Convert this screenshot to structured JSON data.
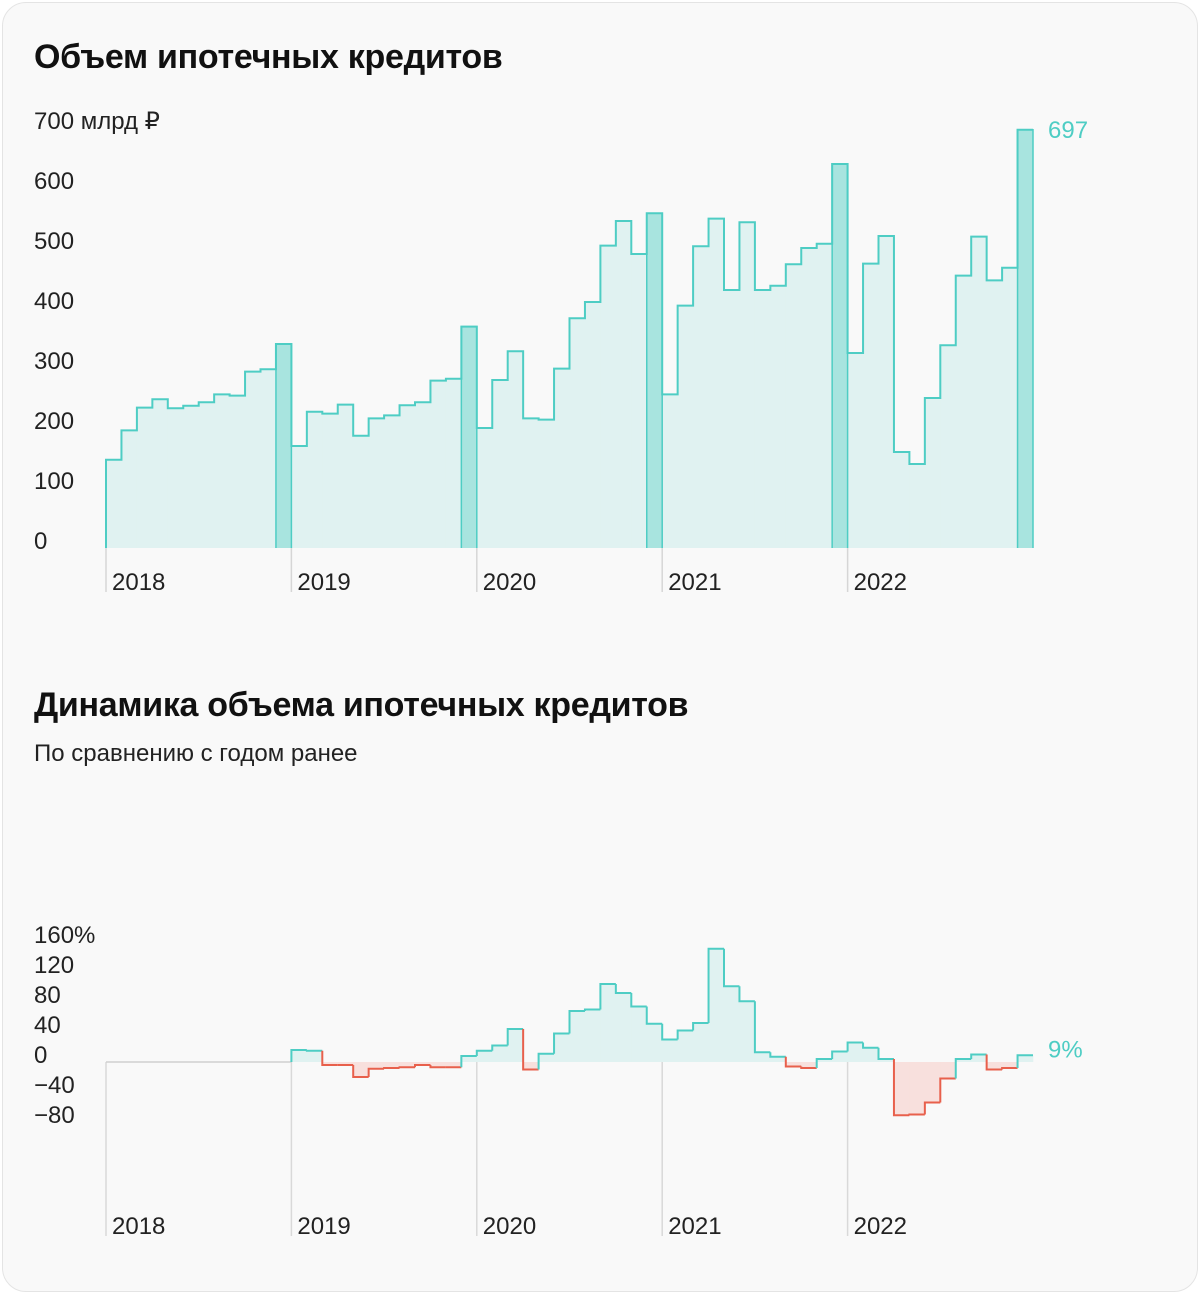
{
  "accent_color": "#4ecdc4",
  "fill_color": "#e0f2f1",
  "highlight_fill_color": "#a8e4df",
  "negative_color": "#e8604c",
  "negative_fill_color": "#f8e0dd",
  "chart_data": [
    {
      "type": "bar",
      "title": "Объем ипотечных кредитов",
      "ylabel": "",
      "unit": "млрд ₽",
      "y_ticks": [
        "0",
        "100",
        "200",
        "300",
        "400",
        "500",
        "600",
        "700 млрд ₽"
      ],
      "ylim": [
        0,
        700
      ],
      "x_ticks": [
        "2018",
        "2019",
        "2020",
        "2021",
        "2022"
      ],
      "end_label": "697",
      "highlight": "December of each year",
      "x": [
        "2018-01",
        "2018-02",
        "2018-03",
        "2018-04",
        "2018-05",
        "2018-06",
        "2018-07",
        "2018-08",
        "2018-09",
        "2018-10",
        "2018-11",
        "2018-12",
        "2019-01",
        "2019-02",
        "2019-03",
        "2019-04",
        "2019-05",
        "2019-06",
        "2019-07",
        "2019-08",
        "2019-09",
        "2019-10",
        "2019-11",
        "2019-12",
        "2020-01",
        "2020-02",
        "2020-03",
        "2020-04",
        "2020-05",
        "2020-06",
        "2020-07",
        "2020-08",
        "2020-09",
        "2020-10",
        "2020-11",
        "2020-12",
        "2021-01",
        "2021-02",
        "2021-03",
        "2021-04",
        "2021-05",
        "2021-06",
        "2021-07",
        "2021-08",
        "2021-09",
        "2021-10",
        "2021-11",
        "2021-12",
        "2022-01",
        "2022-02",
        "2022-03",
        "2022-04",
        "2022-05",
        "2022-06",
        "2022-07",
        "2022-08",
        "2022-09",
        "2022-10",
        "2022-11",
        "2022-12"
      ],
      "values": [
        147,
        196,
        234,
        248,
        233,
        237,
        243,
        256,
        254,
        294,
        298,
        340,
        170,
        227,
        224,
        239,
        187,
        216,
        221,
        238,
        243,
        279,
        282,
        369,
        200,
        280,
        328,
        216,
        214,
        299,
        383,
        410,
        504,
        545,
        490,
        558,
        256,
        404,
        503,
        549,
        430,
        543,
        430,
        437,
        473,
        500,
        507,
        640,
        325,
        474,
        520,
        160,
        140,
        250,
        338,
        454,
        519,
        446,
        467,
        697
      ]
    },
    {
      "type": "area",
      "title": "Динамика объема ипотечных кредитов",
      "subtitle": "По сравнению с годом ранее",
      "ylabel": "",
      "unit": "%",
      "y_ticks": [
        "−80",
        "−40",
        "0",
        "40",
        "80",
        "120",
        "160%"
      ],
      "ylim": [
        -80,
        160
      ],
      "x_ticks": [
        "2018",
        "2019",
        "2020",
        "2021",
        "2022"
      ],
      "end_label": "9%",
      "x": [
        "2019-01",
        "2019-02",
        "2019-03",
        "2019-04",
        "2019-05",
        "2019-06",
        "2019-07",
        "2019-08",
        "2019-09",
        "2019-10",
        "2019-11",
        "2019-12",
        "2020-01",
        "2020-02",
        "2020-03",
        "2020-04",
        "2020-05",
        "2020-06",
        "2020-07",
        "2020-08",
        "2020-09",
        "2020-10",
        "2020-11",
        "2020-12",
        "2021-01",
        "2021-02",
        "2021-03",
        "2021-04",
        "2021-05",
        "2021-06",
        "2021-07",
        "2021-08",
        "2021-09",
        "2021-10",
        "2021-11",
        "2021-12",
        "2022-01",
        "2022-02",
        "2022-03",
        "2022-04",
        "2022-05",
        "2022-06",
        "2022-07",
        "2022-08",
        "2022-09",
        "2022-10",
        "2022-11",
        "2022-12"
      ],
      "values": [
        16,
        15,
        -4,
        -4,
        -20,
        -9,
        -8,
        -7,
        -4,
        -7,
        -7,
        8,
        15,
        22,
        44,
        -10,
        11,
        38,
        68,
        70,
        104,
        92,
        74,
        51,
        30,
        42,
        52,
        151,
        101,
        81,
        13,
        7,
        -6,
        -8,
        4,
        14,
        26,
        19,
        4,
        -71,
        -70,
        -54,
        -22,
        4,
        10,
        -10,
        -8,
        9
      ]
    }
  ]
}
